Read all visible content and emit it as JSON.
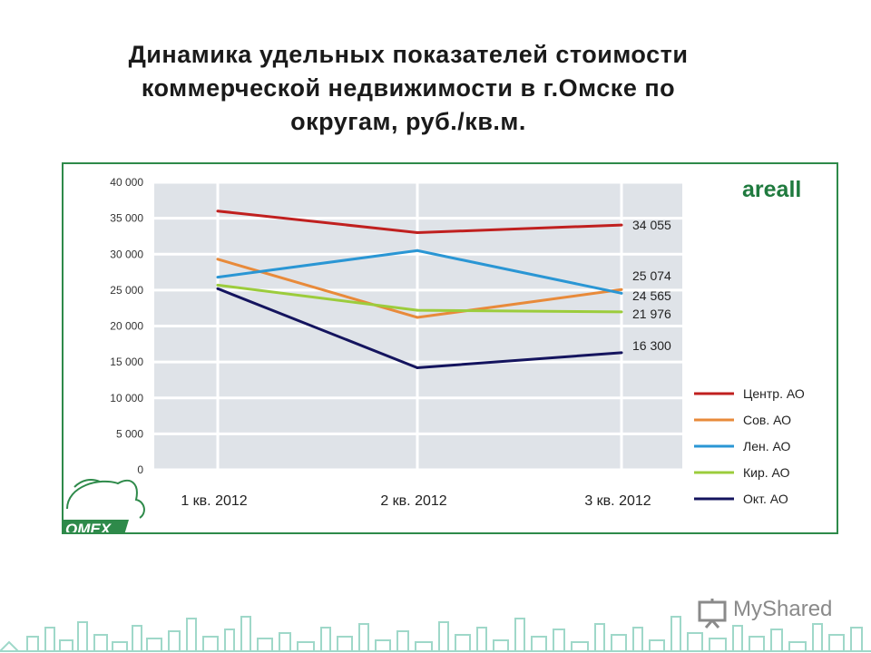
{
  "title_lines": [
    "Динамика удельных показателей стоимости",
    "коммерческой недвижимости в г.Омске по",
    "округам, руб./кв.м."
  ],
  "brand": "areall",
  "logo_text": "OMEX",
  "watermark": "MyShared",
  "colors": {
    "frame": "#2e8a4a",
    "plot_bg": "#dfe3e8",
    "grid": "#ffffff"
  },
  "chart_data": {
    "type": "line",
    "categories": [
      "1 кв. 2012",
      "2 кв. 2012",
      "3 кв. 2012"
    ],
    "ylim": [
      0,
      40000
    ],
    "yticks": [
      0,
      5000,
      10000,
      15000,
      20000,
      25000,
      30000,
      35000,
      40000
    ],
    "ytick_labels": [
      "0",
      "5 000",
      "10 000",
      "15 000",
      "20 000",
      "25 000",
      "30 000",
      "35 000",
      "40 000"
    ],
    "legend_position": "right",
    "series": [
      {
        "name": "Центр. АО",
        "color": "#c0201f",
        "values": [
          36000,
          33000,
          34055
        ],
        "end_label": "34 055"
      },
      {
        "name": "Сов. АО",
        "color": "#e88a3a",
        "values": [
          29300,
          21200,
          25074
        ],
        "end_label": "25 074"
      },
      {
        "name": "Лен. АО",
        "color": "#2a96d4",
        "values": [
          26800,
          30500,
          24565
        ],
        "end_label": "24 565"
      },
      {
        "name": "Кир. АО",
        "color": "#9ccc3c",
        "values": [
          25700,
          22200,
          21976
        ],
        "end_label": "21 976"
      },
      {
        "name": "Окт. АО",
        "color": "#14145e",
        "values": [
          25200,
          14200,
          16300
        ],
        "end_label": "16 300"
      }
    ]
  }
}
